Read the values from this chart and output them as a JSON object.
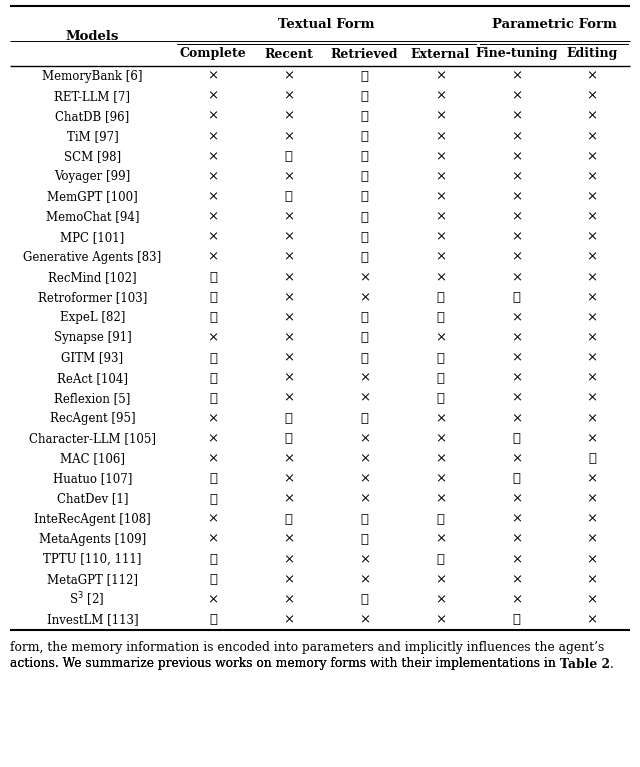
{
  "title_top": "Textual Form",
  "title_top2": "Parametric Form",
  "col_headers": [
    "Complete",
    "Recent",
    "Retrieved",
    "External",
    "Fine-tuning",
    "Editing"
  ],
  "row_label": "Models",
  "models": [
    "MemoryBank [6]",
    "RET-LLM [7]",
    "ChatDB [96]",
    "TiM [97]",
    "SCM [98]",
    "Voyager [99]",
    "MemGPT [100]",
    "MemoChat [94]",
    "MPC [101]",
    "Generative Agents [83]",
    "RecMind [102]",
    "Retroformer [103]",
    "ExpeL [82]",
    "Synapse [91]",
    "GITM [93]",
    "ReAct [104]",
    "Reflexion [5]",
    "RecAgent [95]",
    "Character-LLM [105]",
    "MAC [106]",
    "Huatuo [107]",
    "ChatDev [1]",
    "InteRecAgent [108]",
    "MetaAgents [109]",
    "TPTU [110, 111]",
    "MetaGPT [112]",
    "S^3 [2]",
    "InvestLM [113]"
  ],
  "data": [
    [
      0,
      0,
      1,
      0,
      0,
      0
    ],
    [
      0,
      0,
      1,
      0,
      0,
      0
    ],
    [
      0,
      0,
      1,
      0,
      0,
      0
    ],
    [
      0,
      0,
      1,
      0,
      0,
      0
    ],
    [
      0,
      1,
      1,
      0,
      0,
      0
    ],
    [
      0,
      0,
      1,
      0,
      0,
      0
    ],
    [
      0,
      1,
      1,
      0,
      0,
      0
    ],
    [
      0,
      0,
      1,
      0,
      0,
      0
    ],
    [
      0,
      0,
      1,
      0,
      0,
      0
    ],
    [
      0,
      0,
      1,
      0,
      0,
      0
    ],
    [
      1,
      0,
      0,
      0,
      0,
      0
    ],
    [
      1,
      0,
      0,
      1,
      1,
      0
    ],
    [
      1,
      0,
      1,
      1,
      0,
      0
    ],
    [
      0,
      0,
      1,
      0,
      0,
      0
    ],
    [
      1,
      0,
      1,
      1,
      0,
      0
    ],
    [
      1,
      0,
      0,
      1,
      0,
      0
    ],
    [
      1,
      0,
      0,
      1,
      0,
      0
    ],
    [
      0,
      1,
      1,
      0,
      0,
      0
    ],
    [
      0,
      1,
      0,
      0,
      1,
      0
    ],
    [
      0,
      0,
      0,
      0,
      0,
      1
    ],
    [
      1,
      0,
      0,
      0,
      1,
      0
    ],
    [
      1,
      0,
      0,
      0,
      0,
      0
    ],
    [
      0,
      1,
      1,
      1,
      0,
      0
    ],
    [
      0,
      0,
      1,
      0,
      0,
      0
    ],
    [
      1,
      0,
      0,
      1,
      0,
      0
    ],
    [
      1,
      0,
      0,
      0,
      0,
      0
    ],
    [
      0,
      0,
      1,
      0,
      0,
      0
    ],
    [
      1,
      0,
      0,
      0,
      1,
      0
    ]
  ],
  "footer_line1": "form, the memory information is encoded into parameters and implicitly influences the agent’s",
  "footer_line2_pre": "actions. We summarize previous works on memory forms with their implementations in ",
  "footer_bold": "Table 2",
  "footer_period": ".",
  "bg_color": "#ffffff",
  "text_color": "#000000",
  "line_color": "#000000",
  "check_symbol": "✓",
  "cross_symbol": "×",
  "font_family": "DejaVu Serif",
  "font_size_header_group": 9.5,
  "font_size_header_col": 9,
  "font_size_body": 8.5,
  "font_size_footer": 8.8
}
